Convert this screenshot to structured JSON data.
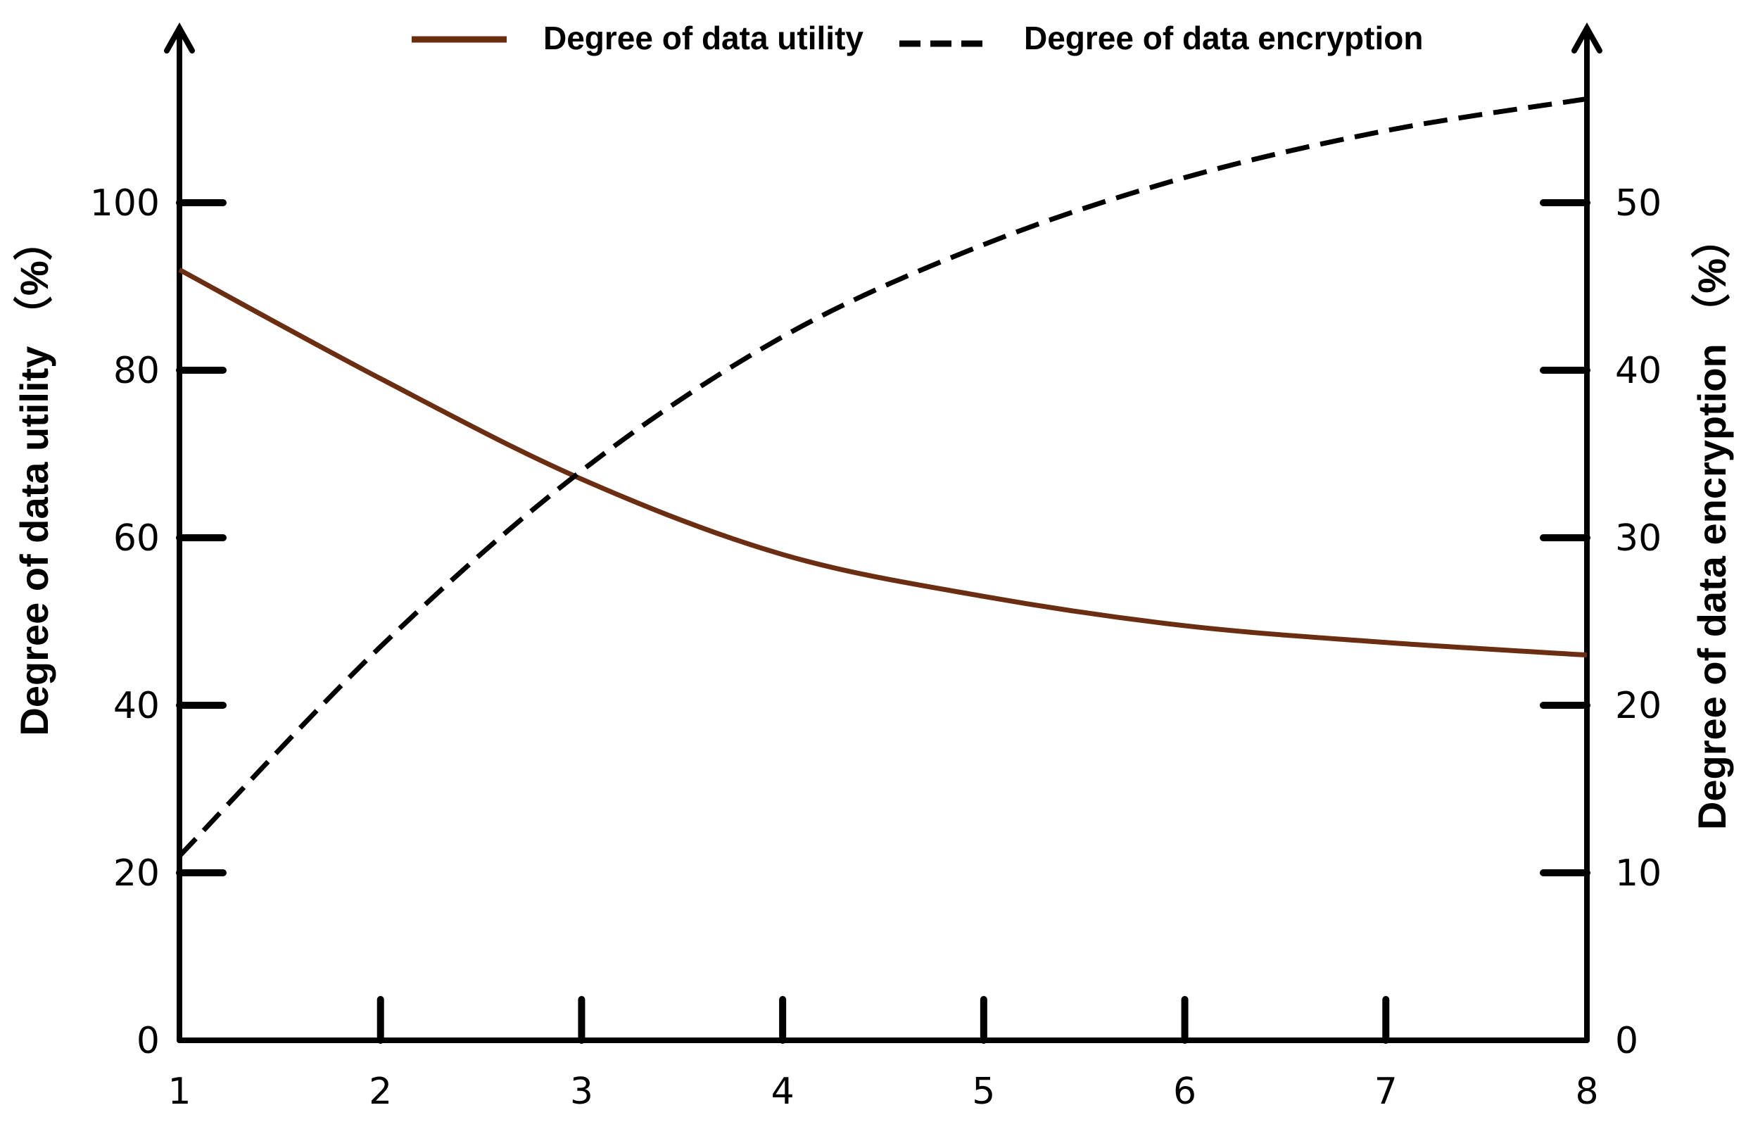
{
  "chart_data": {
    "type": "line",
    "title": "",
    "xlabel": "",
    "ylabel_left": "Degree of data utility （%）",
    "ylabel_right": "Degree of data encryption （%）",
    "x": [
      1,
      2,
      3,
      4,
      5,
      6,
      7,
      8
    ],
    "x_ticks": [
      "1",
      "2",
      "3",
      "4",
      "5",
      "6",
      "7",
      "8"
    ],
    "x_range": [
      1,
      8
    ],
    "y_left_ticks": [
      "0",
      "20",
      "40",
      "60",
      "80",
      "100"
    ],
    "y_left_range": [
      0,
      100
    ],
    "y_right_ticks": [
      "0",
      "10",
      "20",
      "30",
      "40",
      "50"
    ],
    "y_right_range": [
      0,
      50
    ],
    "grid": false,
    "legend_position": "top-center",
    "series": [
      {
        "name": "Degree of data utility",
        "axis": "left",
        "style": "solid",
        "color": "#6b2e12",
        "values": [
          92,
          79,
          67,
          58,
          53,
          49.5,
          47.5,
          46
        ]
      },
      {
        "name": "Degree of data encryption",
        "axis": "right",
        "style": "dashed",
        "color": "#000000",
        "values": [
          11,
          23.5,
          34,
          42,
          47.5,
          51.5,
          54.3,
          56.2
        ]
      }
    ]
  }
}
